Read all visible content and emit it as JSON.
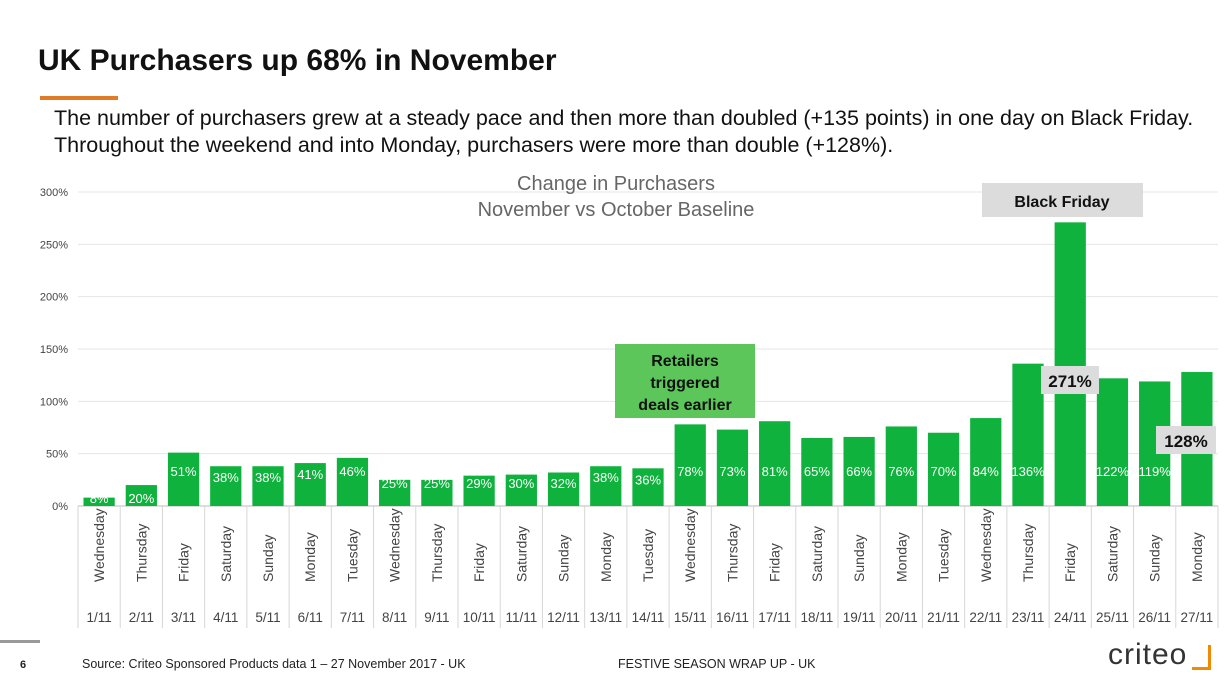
{
  "slide": {
    "title": "UK Purchasers up 68% in November",
    "subtitle": "The number of purchasers grew at a steady pace and then more than doubled (+135 points) in one day on Black Friday. Throughout the weekend and into Monday, purchasers were more than double (+128%).",
    "page_number": "6",
    "source": "Source: Criteo Sponsored Products data 1 – 27 November 2017 - UK",
    "footer_label": "FESTIVE SEASON WRAP UP  - UK",
    "logo_text": "criteo"
  },
  "colors": {
    "bar": "#0fb23c",
    "accent": "#e07b28",
    "callout_green": "#5cc65a",
    "callout_gray": "#dcdcdc"
  },
  "chart_data": {
    "type": "bar",
    "title": "Change in Purchasers",
    "subtitle": "November vs October Baseline",
    "ylim": [
      0,
      300
    ],
    "yticks": [
      "0%",
      "50%",
      "100%",
      "150%",
      "200%",
      "250%",
      "300%"
    ],
    "ytick_values": [
      0,
      50,
      100,
      150,
      200,
      250,
      300
    ],
    "days": [
      "Wednesday",
      "Thursday",
      "Friday",
      "Saturday",
      "Sunday",
      "Monday",
      "Tuesday",
      "Wednesday",
      "Thursday",
      "Friday",
      "Saturday",
      "Sunday",
      "Monday",
      "Tuesday",
      "Wednesday",
      "Thursday",
      "Friday",
      "Saturday",
      "Sunday",
      "Monday",
      "Tuesday",
      "Wednesday",
      "Thursday",
      "Friday",
      "Saturday",
      "Sunday",
      "Monday"
    ],
    "dates": [
      "1/11",
      "2/11",
      "3/11",
      "4/11",
      "5/11",
      "6/11",
      "7/11",
      "8/11",
      "9/11",
      "10/11",
      "11/11",
      "12/11",
      "13/11",
      "14/11",
      "15/11",
      "16/11",
      "17/11",
      "18/11",
      "19/11",
      "20/11",
      "21/11",
      "22/11",
      "23/11",
      "24/11",
      "25/11",
      "26/11",
      "27/11"
    ],
    "values": [
      8,
      20,
      51,
      38,
      38,
      41,
      46,
      25,
      25,
      29,
      30,
      32,
      38,
      36,
      78,
      73,
      81,
      65,
      66,
      76,
      70,
      84,
      136,
      271,
      122,
      119,
      128
    ],
    "labels": [
      "8%",
      "20%",
      "51%",
      "38%",
      "38%",
      "41%",
      "46%",
      "25%",
      "25%",
      "29%",
      "30%",
      "32%",
      "38%",
      "36%",
      "78%",
      "73%",
      "81%",
      "65%",
      "66%",
      "76%",
      "70%",
      "84%",
      "136%",
      "271%",
      "122%",
      "119%",
      "128%"
    ],
    "annotations": {
      "retailers": "Retailers triggered deals earlier",
      "black_friday": "Black Friday",
      "peak_label": "271%",
      "monday_label": "128%"
    }
  }
}
